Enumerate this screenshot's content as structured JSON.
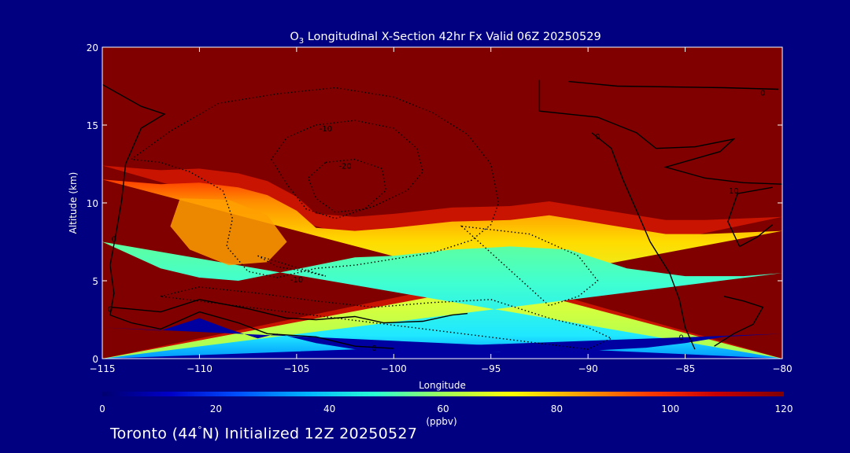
{
  "chart_data": {
    "type": "heatmap",
    "title": {
      "species": "O",
      "subscript": "3",
      "text": " Longitudinal X-Section 42hr  Fx Valid 06Z 20250529"
    },
    "xlabel": "Longitude",
    "ylabel": "Altitude (km)",
    "xlim": [
      -115,
      -80
    ],
    "ylim": [
      0,
      20
    ],
    "x_ticks": [
      -115,
      -110,
      -105,
      -100,
      -95,
      -90,
      -85,
      -80
    ],
    "x_tick_labels": [
      "−115",
      "−110",
      "−105",
      "−100",
      "−95",
      "−90",
      "−85",
      "−80"
    ],
    "y_ticks": [
      0,
      5,
      10,
      15,
      20
    ],
    "y_tick_labels": [
      "0",
      "5",
      "10",
      "15",
      "20"
    ],
    "colorbar": {
      "min": 0,
      "max": 120,
      "ticks": [
        0,
        20,
        40,
        60,
        80,
        100,
        120
      ],
      "tick_labels": [
        "0",
        "20",
        "40",
        "60",
        "80",
        "100",
        "120"
      ],
      "unit": "(ppbv)",
      "colors": [
        "#000070",
        "#0000c8",
        "#0050ff",
        "#00b4ff",
        "#28ffd2",
        "#a0ff5a",
        "#ffff00",
        "#ffa000",
        "#ff3c00",
        "#c80000",
        "#800000"
      ]
    },
    "field_colors": {
      "high": "#800000",
      "mid": "#ffdc00",
      "low": "#40ffd0",
      "ground": "#0000a0"
    },
    "ozone_top_boundary_km": [
      {
        "lon": -115,
        "alt": 11.5
      },
      {
        "lon": -112,
        "alt": 11.2
      },
      {
        "lon": -110,
        "alt": 11.3
      },
      {
        "lon": -108,
        "alt": 11.0
      },
      {
        "lon": -106.5,
        "alt": 10.5
      },
      {
        "lon": -105,
        "alt": 9.5
      },
      {
        "lon": -104,
        "alt": 8.4
      },
      {
        "lon": -102,
        "alt": 8.2
      },
      {
        "lon": -100,
        "alt": 8.4
      },
      {
        "lon": -97,
        "alt": 8.8
      },
      {
        "lon": -94,
        "alt": 8.9
      },
      {
        "lon": -92,
        "alt": 9.2
      },
      {
        "lon": -89,
        "alt": 8.6
      },
      {
        "lon": -86,
        "alt": 8.0
      },
      {
        "lon": -84,
        "alt": 8.0
      },
      {
        "lon": -80,
        "alt": 8.2
      }
    ],
    "yellow_zone_bottom_km": [
      {
        "lon": -115,
        "alt": 7.5
      },
      {
        "lon": -112,
        "alt": 5.8
      },
      {
        "lon": -110,
        "alt": 5.2
      },
      {
        "lon": -108,
        "alt": 5.0
      },
      {
        "lon": -106,
        "alt": 5.5
      },
      {
        "lon": -104,
        "alt": 6.0
      },
      {
        "lon": -102,
        "alt": 6.5
      },
      {
        "lon": -100,
        "alt": 6.6
      },
      {
        "lon": -97,
        "alt": 7.0
      },
      {
        "lon": -94,
        "alt": 7.2
      },
      {
        "lon": -91,
        "alt": 7.0
      },
      {
        "lon": -88,
        "alt": 5.8
      },
      {
        "lon": -85,
        "alt": 5.3
      },
      {
        "lon": -82,
        "alt": 5.3
      },
      {
        "lon": -80,
        "alt": 5.5
      }
    ],
    "orange_core": [
      {
        "lon": -111,
        "alt": 10.3
      },
      {
        "lon": -108.5,
        "alt": 10.2
      },
      {
        "lon": -106.5,
        "alt": 9.2
      },
      {
        "lon": -105.5,
        "alt": 7.5
      },
      {
        "lon": -106.5,
        "alt": 6.2
      },
      {
        "lon": -108.5,
        "alt": 6.0
      },
      {
        "lon": -110.5,
        "alt": 7.0
      },
      {
        "lon": -111.5,
        "alt": 8.5
      }
    ],
    "blue_ground_top_km": [
      {
        "lon": -115,
        "alt": 2.0
      },
      {
        "lon": -112,
        "alt": 1.8
      },
      {
        "lon": -110,
        "alt": 2.6
      },
      {
        "lon": -108.5,
        "alt": 1.9
      },
      {
        "lon": -107,
        "alt": 1.3
      },
      {
        "lon": -106,
        "alt": 1.6
      },
      {
        "lon": -104,
        "alt": 1.0
      },
      {
        "lon": -102,
        "alt": 0.6
      },
      {
        "lon": -100,
        "alt": 0.5
      },
      {
        "lon": -95,
        "alt": 0.45
      },
      {
        "lon": -90,
        "alt": 0.5
      },
      {
        "lon": -87,
        "alt": 0.7
      },
      {
        "lon": -85,
        "alt": 1.0
      },
      {
        "lon": -83,
        "alt": 1.4
      },
      {
        "lon": -80,
        "alt": 1.6
      }
    ],
    "contours_solid": [
      {
        "label": "0",
        "points": [
          {
            "lon": -115,
            "alt": 17.6
          },
          {
            "lon": -113,
            "alt": 16.2
          },
          {
            "lon": -111.8,
            "alt": 15.7
          },
          {
            "lon": -113.0,
            "alt": 14.8
          },
          {
            "lon": -113.8,
            "alt": 12.5
          },
          {
            "lon": -114.0,
            "alt": 10.2
          },
          {
            "lon": -114.3,
            "alt": 8.0
          },
          {
            "lon": -114.6,
            "alt": 6.0
          },
          {
            "lon": -114.4,
            "alt": 4.2
          },
          {
            "lon": -114.6,
            "alt": 2.8
          },
          {
            "lon": -113.5,
            "alt": 2.3
          },
          {
            "lon": -112,
            "alt": 1.9
          },
          {
            "lon": -110,
            "alt": 3.0
          },
          {
            "lon": -108,
            "alt": 2.3
          },
          {
            "lon": -106.5,
            "alt": 1.6
          },
          {
            "lon": -104,
            "alt": 1.4
          },
          {
            "lon": -102,
            "alt": 0.8
          },
          {
            "lon": -100,
            "alt": 0.65
          }
        ]
      },
      {
        "label": "0",
        "points": [
          {
            "lon": -114.5,
            "alt": 3.3
          },
          {
            "lon": -112,
            "alt": 3.0
          },
          {
            "lon": -110,
            "alt": 3.8
          },
          {
            "lon": -107.5,
            "alt": 3.2
          },
          {
            "lon": -105.5,
            "alt": 2.6
          },
          {
            "lon": -104,
            "alt": 2.5
          },
          {
            "lon": -102,
            "alt": 2.7
          },
          {
            "lon": -100.5,
            "alt": 2.3
          },
          {
            "lon": -98.5,
            "alt": 2.4
          },
          {
            "lon": -97,
            "alt": 2.8
          },
          {
            "lon": -96.2,
            "alt": 2.9
          }
        ]
      },
      {
        "label": "0",
        "points": [
          {
            "lon": -92.5,
            "alt": 17.9
          },
          {
            "lon": -92.5,
            "alt": 15.9
          },
          {
            "lon": -89.5,
            "alt": 15.5
          },
          {
            "lon": -88.5,
            "alt": 15.0
          },
          {
            "lon": -87.5,
            "alt": 14.5
          },
          {
            "lon": -86.5,
            "alt": 13.5
          },
          {
            "lon": -84.5,
            "alt": 13.6
          },
          {
            "lon": -82.5,
            "alt": 14.1
          },
          {
            "lon": -83.2,
            "alt": 13.3
          },
          {
            "lon": -86,
            "alt": 12.3
          },
          {
            "lon": -84,
            "alt": 11.6
          },
          {
            "lon": -82,
            "alt": 11.3
          },
          {
            "lon": -80,
            "alt": 11.2
          }
        ]
      },
      {
        "label": "0",
        "points": [
          {
            "lon": -91,
            "alt": 17.8
          },
          {
            "lon": -88.5,
            "alt": 17.5
          },
          {
            "lon": -83,
            "alt": 17.4
          },
          {
            "lon": -80.2,
            "alt": 17.3
          }
        ]
      },
      {
        "label": "0",
        "points": [
          {
            "lon": -89.8,
            "alt": 14.5
          },
          {
            "lon": -88.8,
            "alt": 13.5
          },
          {
            "lon": -88.2,
            "alt": 11.5
          },
          {
            "lon": -87.5,
            "alt": 9.5
          },
          {
            "lon": -86.8,
            "alt": 7.5
          },
          {
            "lon": -85.8,
            "alt": 5.5
          },
          {
            "lon": -85.3,
            "alt": 3.8
          },
          {
            "lon": -85.0,
            "alt": 2.0
          },
          {
            "lon": -84.5,
            "alt": 0.6
          }
        ]
      },
      {
        "label": "10",
        "points": [
          {
            "lon": -80.5,
            "alt": 11.0
          },
          {
            "lon": -82.3,
            "alt": 10.6
          },
          {
            "lon": -82.8,
            "alt": 8.8
          },
          {
            "lon": -82.2,
            "alt": 7.2
          },
          {
            "lon": -81.3,
            "alt": 7.8
          },
          {
            "lon": -80.5,
            "alt": 8.6
          }
        ]
      },
      {
        "label": "0",
        "points": [
          {
            "lon": -83,
            "alt": 4.0
          },
          {
            "lon": -82,
            "alt": 3.7
          },
          {
            "lon": -81,
            "alt": 3.3
          },
          {
            "lon": -81.5,
            "alt": 2.2
          },
          {
            "lon": -82.5,
            "alt": 1.6
          },
          {
            "lon": -83.5,
            "alt": 0.8
          }
        ]
      }
    ],
    "contours_dashed": [
      {
        "label": "-10",
        "points": [
          {
            "lon": -113.5,
            "alt": 12.8
          },
          {
            "lon": -111.5,
            "alt": 14.6
          },
          {
            "lon": -109,
            "alt": 16.4
          },
          {
            "lon": -106,
            "alt": 17.0
          },
          {
            "lon": -103,
            "alt": 17.4
          },
          {
            "lon": -100,
            "alt": 16.8
          },
          {
            "lon": -98,
            "alt": 15.8
          },
          {
            "lon": -96.2,
            "alt": 14.4
          },
          {
            "lon": -95,
            "alt": 12.5
          },
          {
            "lon": -94.6,
            "alt": 10.0
          },
          {
            "lon": -95,
            "alt": 8.6
          },
          {
            "lon": -96,
            "alt": 7.6
          },
          {
            "lon": -98,
            "alt": 6.8
          },
          {
            "lon": -100,
            "alt": 6.4
          },
          {
            "lon": -102,
            "alt": 6.0
          },
          {
            "lon": -104,
            "alt": 5.8
          },
          {
            "lon": -106,
            "alt": 5.2
          },
          {
            "lon": -107.5,
            "alt": 5.6
          },
          {
            "lon": -108.6,
            "alt": 7.2
          },
          {
            "lon": -108.3,
            "alt": 9.0
          },
          {
            "lon": -108.8,
            "alt": 10.8
          },
          {
            "lon": -110.5,
            "alt": 12.0
          },
          {
            "lon": -112,
            "alt": 12.6
          }
        ]
      },
      {
        "label": "-10",
        "points": [
          {
            "lon": -104,
            "alt": 15.0
          },
          {
            "lon": -102,
            "alt": 15.3
          },
          {
            "lon": -100,
            "alt": 14.8
          },
          {
            "lon": -98.8,
            "alt": 13.5
          },
          {
            "lon": -98.5,
            "alt": 12.0
          },
          {
            "lon": -99.3,
            "alt": 10.8
          },
          {
            "lon": -101,
            "alt": 9.8
          },
          {
            "lon": -103,
            "alt": 9.0
          },
          {
            "lon": -104.5,
            "alt": 9.6
          },
          {
            "lon": -105.5,
            "alt": 11.2
          },
          {
            "lon": -106.3,
            "alt": 12.8
          },
          {
            "lon": -105.5,
            "alt": 14.2
          }
        ]
      },
      {
        "label": "-20",
        "points": [
          {
            "lon": -103.5,
            "alt": 12.6
          },
          {
            "lon": -102,
            "alt": 12.8
          },
          {
            "lon": -100.6,
            "alt": 12.2
          },
          {
            "lon": -100.4,
            "alt": 10.8
          },
          {
            "lon": -101.5,
            "alt": 9.6
          },
          {
            "lon": -103,
            "alt": 9.4
          },
          {
            "lon": -104,
            "alt": 10.3
          },
          {
            "lon": -104.4,
            "alt": 11.6
          }
        ]
      },
      {
        "label": "",
        "points": [
          {
            "lon": -112,
            "alt": 4.0
          },
          {
            "lon": -110,
            "alt": 4.6
          },
          {
            "lon": -107,
            "alt": 4.2
          },
          {
            "lon": -104,
            "alt": 3.7
          },
          {
            "lon": -101,
            "alt": 3.3
          },
          {
            "lon": -98,
            "alt": 3.6
          },
          {
            "lon": -95,
            "alt": 3.8
          },
          {
            "lon": -92,
            "alt": 2.6
          },
          {
            "lon": -90,
            "alt": 2.0
          },
          {
            "lon": -88.8,
            "alt": 1.3
          },
          {
            "lon": -90,
            "alt": 0.6
          }
        ]
      },
      {
        "label": "",
        "points": [
          {
            "lon": -96.5,
            "alt": 8.5
          },
          {
            "lon": -93,
            "alt": 8.0
          },
          {
            "lon": -90.5,
            "alt": 6.6
          },
          {
            "lon": -89.5,
            "alt": 5.0
          },
          {
            "lon": -90.5,
            "alt": 4.0
          },
          {
            "lon": -92,
            "alt": 3.4
          }
        ]
      },
      {
        "label": "-10",
        "points": [
          {
            "lon": -107,
            "alt": 6.6
          },
          {
            "lon": -106,
            "alt": 5.9
          },
          {
            "lon": -104.5,
            "alt": 5.6
          },
          {
            "lon": -103.5,
            "alt": 5.3
          }
        ]
      }
    ],
    "contour_label_positions": [
      {
        "text": "-10",
        "lon": -103.5,
        "alt": 14.8
      },
      {
        "text": "-20",
        "lon": -102.5,
        "alt": 12.4
      },
      {
        "text": "-10",
        "lon": -105.0,
        "alt": 5.1
      },
      {
        "text": "0",
        "lon": -114.4,
        "alt": 7.7
      },
      {
        "text": "0",
        "lon": -114.6,
        "alt": 3.2
      },
      {
        "text": "0",
        "lon": -101.0,
        "alt": 0.7
      },
      {
        "text": "0",
        "lon": -81.0,
        "alt": 17.1
      },
      {
        "text": "0",
        "lon": -89.5,
        "alt": 14.3
      },
      {
        "text": "10",
        "lon": -82.5,
        "alt": 10.8
      },
      {
        "text": "0",
        "lon": -85.2,
        "alt": 1.4
      }
    ]
  },
  "footer": {
    "prefix": "Toronto (44",
    "degree": "°",
    "suffix": "N) Initialized 12Z 20250527"
  }
}
